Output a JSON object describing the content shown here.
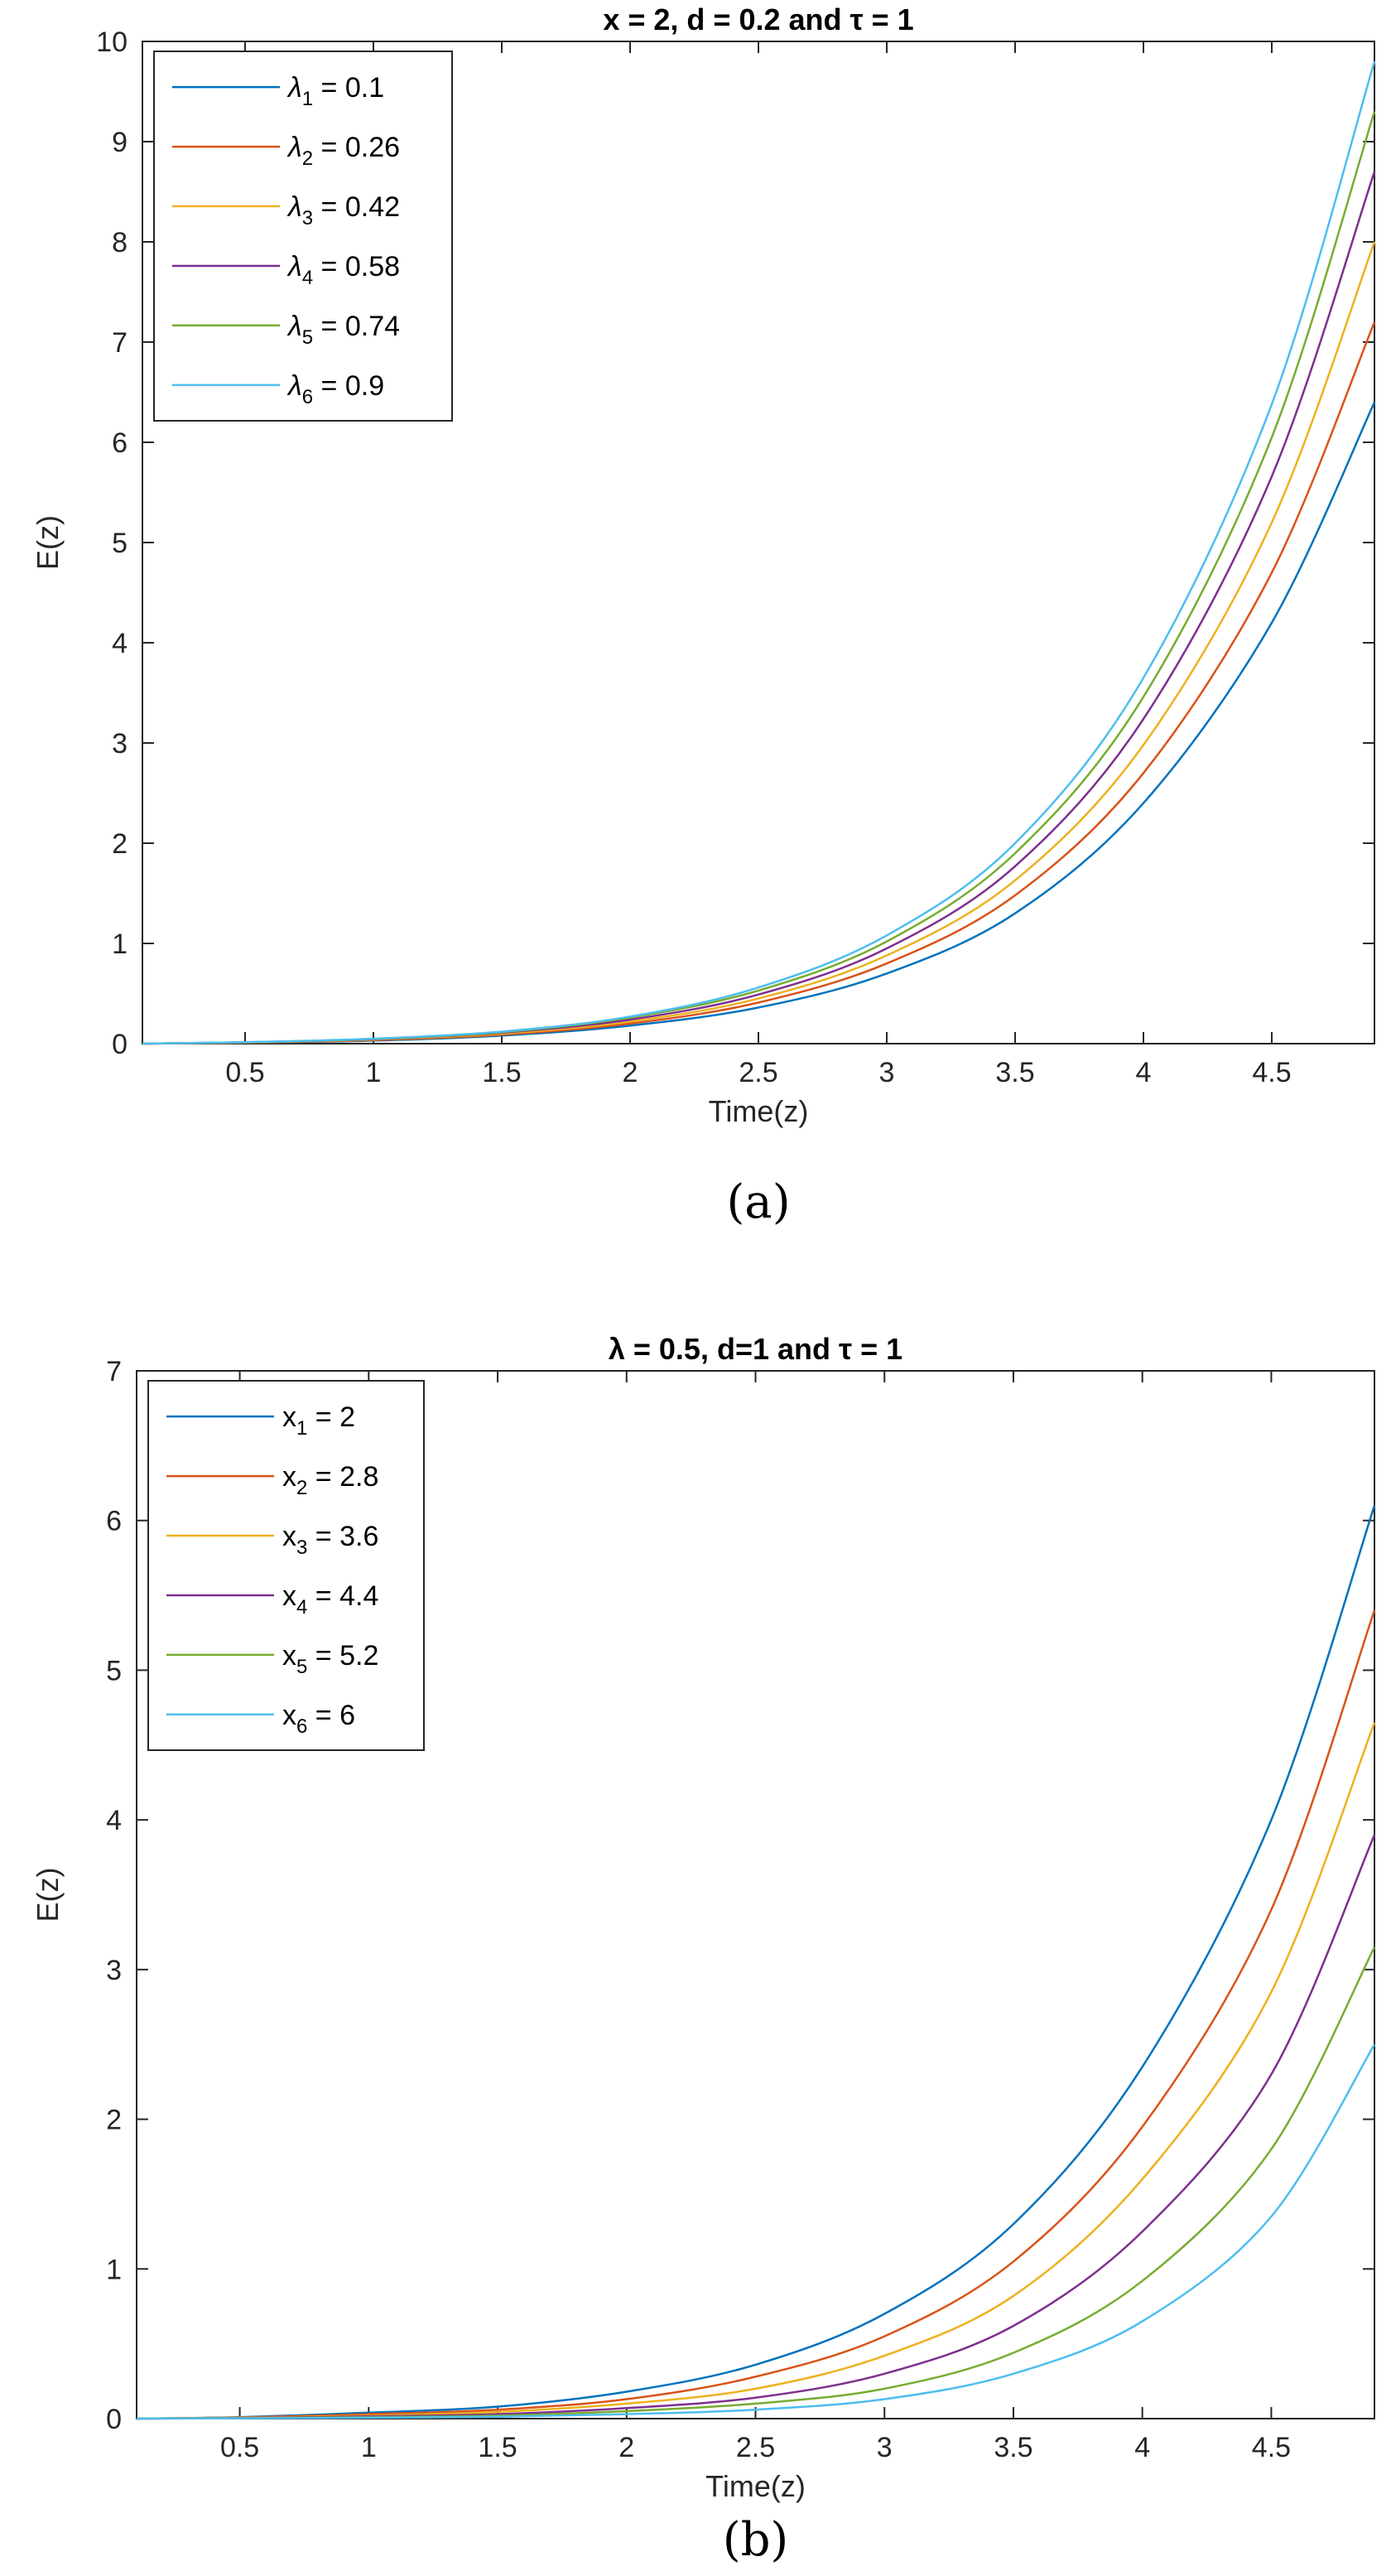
{
  "chart_data": [
    {
      "type": "line",
      "title": "x = 2, d = 0.2 and τ = 1",
      "xlabel": "Time(z)",
      "ylabel": "E(z)",
      "xlim": [
        0.1,
        4.9
      ],
      "ylim": [
        0,
        10
      ],
      "xticks": [
        0.5,
        1,
        1.5,
        2,
        2.5,
        3,
        3.5,
        4,
        4.5
      ],
      "xtick_labels": [
        "0.5",
        "1",
        "1.5",
        "2",
        "2.5",
        "3",
        "3.5",
        "4",
        "4.5"
      ],
      "yticks": [
        0,
        1,
        2,
        3,
        4,
        5,
        6,
        7,
        8,
        9,
        10
      ],
      "ytick_labels": [
        "0",
        "1",
        "2",
        "3",
        "4",
        "5",
        "6",
        "7",
        "8",
        "9",
        "10"
      ],
      "grid": false,
      "legend_position": "top-left",
      "caption": "(a)",
      "x": [
        0.1,
        0.5,
        1,
        1.5,
        2,
        2.5,
        3,
        3.5,
        4,
        4.5,
        4.9
      ],
      "series": [
        {
          "name": "λ1 = 0.1",
          "sym": "λ",
          "sub": "1",
          "val": " = 0.1",
          "color": "#0072BD",
          "values": [
            0,
            0.01,
            0.03,
            0.08,
            0.18,
            0.36,
            0.7,
            1.3,
            2.4,
            4.2,
            6.4
          ]
        },
        {
          "name": "λ2 = 0.26",
          "sym": "λ",
          "sub": "2",
          "val": " = 0.26",
          "color": "#D95319",
          "values": [
            0,
            0.01,
            0.035,
            0.09,
            0.2,
            0.41,
            0.8,
            1.48,
            2.7,
            4.7,
            7.2
          ]
        },
        {
          "name": "λ3 = 0.42",
          "sym": "λ",
          "sub": "3",
          "val": " = 0.42",
          "color": "#EDB120",
          "values": [
            0,
            0.012,
            0.04,
            0.1,
            0.22,
            0.45,
            0.88,
            1.63,
            2.98,
            5.2,
            8.0
          ]
        },
        {
          "name": "λ4 = 0.58",
          "sym": "λ",
          "sub": "4",
          "val": " = 0.58",
          "color": "#7E2F8E",
          "values": [
            0,
            0.013,
            0.043,
            0.11,
            0.24,
            0.49,
            0.95,
            1.77,
            3.24,
            5.66,
            8.7
          ]
        },
        {
          "name": "λ5 = 0.74",
          "sym": "λ",
          "sub": "5",
          "val": " = 0.74",
          "color": "#77AC30",
          "values": [
            0,
            0.014,
            0.046,
            0.115,
            0.26,
            0.53,
            1.02,
            1.9,
            3.46,
            6.05,
            9.3
          ]
        },
        {
          "name": "λ6 = 0.9",
          "sym": "λ",
          "sub": "6",
          "val": " = 0.9",
          "color": "#4DBEEE",
          "values": [
            0,
            0.015,
            0.05,
            0.12,
            0.27,
            0.56,
            1.08,
            2.0,
            3.65,
            6.38,
            9.8
          ]
        }
      ]
    },
    {
      "type": "line",
      "title": "λ = 0.5, d=1 and τ = 1",
      "xlabel": "Time(z)",
      "ylabel": "E(z)",
      "xlim": [
        0.1,
        4.9
      ],
      "ylim": [
        0,
        7
      ],
      "xticks": [
        0.5,
        1,
        1.5,
        2,
        2.5,
        3,
        3.5,
        4,
        4.5
      ],
      "xtick_labels": [
        "0.5",
        "1",
        "1.5",
        "2",
        "2.5",
        "3",
        "3.5",
        "4",
        "4.5"
      ],
      "yticks": [
        0,
        1,
        2,
        3,
        4,
        5,
        6,
        7
      ],
      "ytick_labels": [
        "0",
        "1",
        "2",
        "3",
        "4",
        "5",
        "6",
        "7"
      ],
      "grid": false,
      "legend_position": "top-left",
      "caption": "(b)",
      "x": [
        0.1,
        0.5,
        1,
        1.5,
        2,
        2.5,
        3,
        3.5,
        4,
        4.5,
        4.9
      ],
      "series": [
        {
          "name": "x1 = 2",
          "sym": "x",
          "sub": "1",
          "val": " = 2",
          "color": "#0072BD",
          "values": [
            0,
            0.01,
            0.04,
            0.08,
            0.18,
            0.36,
            0.7,
            1.3,
            2.35,
            4.0,
            6.1
          ]
        },
        {
          "name": "x2 = 2.8",
          "sym": "x",
          "sub": "2",
          "val": " = 2.8",
          "color": "#D95319",
          "values": [
            0,
            0.008,
            0.03,
            0.06,
            0.13,
            0.28,
            0.55,
            1.05,
            1.95,
            3.4,
            5.4
          ]
        },
        {
          "name": "x3 = 3.6",
          "sym": "x",
          "sub": "3",
          "val": " = 3.6",
          "color": "#EDB120",
          "values": [
            0,
            0.006,
            0.02,
            0.045,
            0.1,
            0.2,
            0.42,
            0.82,
            1.6,
            2.85,
            4.65
          ]
        },
        {
          "name": "x4 = 4.4",
          "sym": "x",
          "sub": "4",
          "val": " = 4.4",
          "color": "#7E2F8E",
          "values": [
            0,
            0.004,
            0.015,
            0.03,
            0.07,
            0.14,
            0.3,
            0.62,
            1.25,
            2.3,
            3.9
          ]
        },
        {
          "name": "x5 = 5.2",
          "sym": "x",
          "sub": "5",
          "val": " = 5.2",
          "color": "#77AC30",
          "values": [
            0,
            0.003,
            0.01,
            0.02,
            0.05,
            0.1,
            0.2,
            0.44,
            0.92,
            1.8,
            3.15
          ]
        },
        {
          "name": "x6 = 6",
          "sym": "x",
          "sub": "6",
          "val": " = 6",
          "color": "#4DBEEE",
          "values": [
            0,
            0.002,
            0.006,
            0.013,
            0.03,
            0.06,
            0.13,
            0.3,
            0.65,
            1.35,
            2.5
          ]
        }
      ]
    }
  ]
}
